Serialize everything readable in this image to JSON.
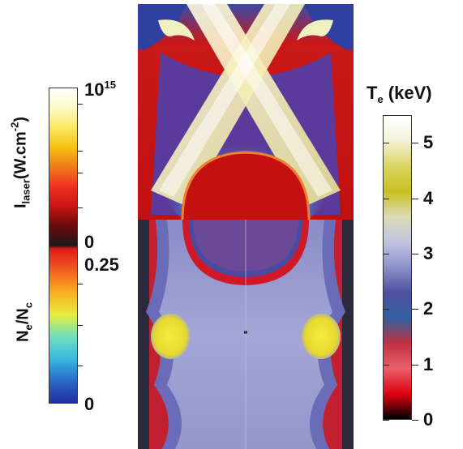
{
  "left_colorbar": {
    "top_segment": {
      "label_main": "I",
      "label_sub": "laser",
      "label_units": "(W.cm",
      "label_units_sup": "-2",
      "label_close": ")",
      "max_label": "10",
      "max_label_sup": "15",
      "min_label": "0"
    },
    "bottom_segment": {
      "label_main": "N",
      "label_sub1": "e",
      "label_slash": "/N",
      "label_sub2": "c",
      "max_label": "0.25",
      "min_label": "0"
    },
    "colors_top": [
      "#1a1a1a",
      "#6a0a0a",
      "#c81414",
      "#f03020",
      "#f07a18",
      "#f6c012",
      "#fbe860",
      "#fdf9c8",
      "#ffffff"
    ],
    "colors_bottom": [
      "#2030a0",
      "#2a68c8",
      "#38b8e0",
      "#70e0c0",
      "#e8ec40",
      "#f8b020",
      "#f06020",
      "#e01818"
    ]
  },
  "right_colorbar": {
    "title_main": "T",
    "title_sub": "e",
    "title_units": " (keV)",
    "ticks": [
      "5",
      "4",
      "3",
      "2",
      "1",
      "0"
    ],
    "tick_values": [
      5,
      4,
      3,
      2,
      1,
      0
    ],
    "max_value": 5.5,
    "colors": [
      "#000000",
      "#e00010",
      "#e8606c",
      "#c03040",
      "#3060a0",
      "#5050a0",
      "#8c90c8",
      "#c0c4e0",
      "#dcdcb8",
      "#c8c020",
      "#d8d460",
      "#f4f2d8",
      "#ffffff"
    ]
  },
  "simulation_image": {
    "colors": {
      "background_red": "#c01414",
      "plasma_dark": "#4a3a8c",
      "laser_white": "#f4f0c8",
      "cyan_region": "#40c0e0",
      "lavender": "#a8aad8",
      "hot_yellow": "#f0e030"
    }
  }
}
